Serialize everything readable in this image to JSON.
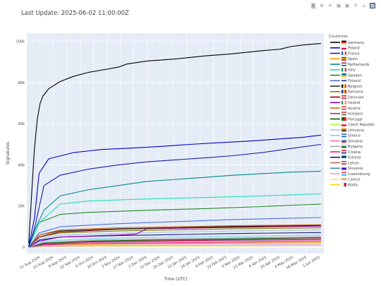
{
  "header": {
    "last_update": "Last Update: 2025-06-02 11:00:00Z"
  },
  "modebar": [
    {
      "name": "camera-icon",
      "glyph": "◙"
    },
    {
      "name": "zoom-icon",
      "glyph": "⊕"
    },
    {
      "name": "pan-icon",
      "glyph": "✛"
    },
    {
      "name": "zoom-in-icon",
      "glyph": "▣"
    },
    {
      "name": "zoom-out-icon",
      "glyph": "▣"
    },
    {
      "name": "autoscale-icon",
      "glyph": "✕"
    },
    {
      "name": "home-icon",
      "glyph": "⌂"
    },
    {
      "name": "plotly-logo-icon",
      "glyph": "▦"
    }
  ],
  "chart_data": {
    "type": "line",
    "title": "",
    "xlabel": "Time (UTC)",
    "ylabel": "Signatures",
    "xrange": [
      "2024-07-28",
      "2025-06-05"
    ],
    "ylim": [
      -3000,
      104000
    ],
    "y_ticks": [
      0,
      20000,
      40000,
      60000,
      80000,
      100000
    ],
    "y_tick_labels": [
      "0",
      "20k",
      "40k",
      "60k",
      "80k",
      "100k"
    ],
    "x_ticks": [
      "2024-08-11",
      "2024-08-25",
      "2024-09-08",
      "2024-09-22",
      "2024-10-06",
      "2024-10-20",
      "2024-11-03",
      "2024-11-17",
      "2024-12-01",
      "2024-12-15",
      "2024-12-29",
      "2025-01-12",
      "2025-01-26",
      "2025-02-09",
      "2025-02-23",
      "2025-03-09",
      "2025-03-23",
      "2025-04-06",
      "2025-04-20",
      "2025-05-04",
      "2025-05-18",
      "2025-06-01"
    ],
    "x_tick_labels": [
      "11 Aug 2024",
      "25 Aug 2024",
      "8 Sep 2024",
      "22 Sep 2024",
      "6 Oct 2024",
      "20 Oct 2024",
      "3 Nov 2024",
      "17 Nov 2024",
      "1 Dec 2024",
      "15 Dec 2024",
      "29 Dec 2024",
      "12 Jan 2025",
      "26 Jan 2025",
      "9 Feb 2025",
      "23 Feb 2025",
      "9 Mar 2025",
      "23 Mar 2025",
      "6 Apr 2025",
      "20 Apr 2025",
      "4 May 2025",
      "18 May 2025",
      "1 Jun 2025"
    ],
    "grid": true,
    "legend_title": "Countries",
    "legend_position": "right",
    "plot_bg": "#e5ecf6",
    "series": [
      {
        "name": "Germany",
        "color": "#000000",
        "flag": [
          "#000000",
          "#dd0000",
          "#ffce00"
        ],
        "flag_dir": "h",
        "x": [
          "2024-07-30",
          "2024-08-02",
          "2024-08-05",
          "2024-08-08",
          "2024-08-11",
          "2024-08-14",
          "2024-08-20",
          "2024-09-01",
          "2024-09-15",
          "2024-10-01",
          "2024-10-20",
          "2024-11-01",
          "2024-11-10",
          "2024-12-01",
          "2025-01-01",
          "2025-02-01",
          "2025-03-01",
          "2025-04-01",
          "2025-04-20",
          "2025-05-01",
          "2025-05-15",
          "2025-06-02"
        ],
        "values": [
          2000,
          25000,
          48000,
          62000,
          70000,
          73500,
          77000,
          80500,
          83000,
          85000,
          86500,
          87500,
          89000,
          90500,
          91500,
          93000,
          94000,
          95500,
          96200,
          97500,
          98300,
          99000
        ]
      },
      {
        "name": "Poland",
        "color": "#0000cc",
        "flag": [
          "#ffffff",
          "#dc143c"
        ],
        "flag_dir": "h",
        "x": [
          "2024-07-30",
          "2024-08-05",
          "2024-08-10",
          "2024-08-20",
          "2024-09-15",
          "2024-10-15",
          "2024-11-15",
          "2024-12-15",
          "2025-01-15",
          "2025-02-15",
          "2025-03-15",
          "2025-04-15",
          "2025-05-15",
          "2025-06-02"
        ],
        "values": [
          500,
          14000,
          36000,
          43000,
          46000,
          47500,
          48200,
          49000,
          50000,
          50800,
          51500,
          52500,
          53500,
          54500
        ]
      },
      {
        "name": "France",
        "color": "#1a1ab0",
        "flag": [
          "#0055a4",
          "#ffffff",
          "#ef4135"
        ],
        "flag_dir": "v",
        "x": [
          "2024-07-30",
          "2024-08-05",
          "2024-08-15",
          "2024-09-01",
          "2024-10-01",
          "2024-11-01",
          "2024-12-01",
          "2025-01-01",
          "2025-02-01",
          "2025-03-01",
          "2025-04-01",
          "2025-05-01",
          "2025-06-02"
        ],
        "values": [
          500,
          9000,
          30000,
          35000,
          38000,
          40000,
          41500,
          42500,
          43500,
          44500,
          46000,
          48000,
          50000
        ]
      },
      {
        "name": "Spain",
        "color": "#ff9900",
        "flag": [
          "#aa151b",
          "#f1bf00",
          "#aa151b"
        ],
        "flag_dir": "h",
        "x": [
          "2024-07-30",
          "2024-08-15",
          "2024-10-01",
          "2024-12-01",
          "2025-02-01",
          "2025-04-01",
          "2025-06-02"
        ],
        "values": [
          100,
          1000,
          1400,
          1700,
          1900,
          2100,
          2300
        ]
      },
      {
        "name": "Netherlands",
        "color": "#008b8b",
        "flag": [
          "#ae1c28",
          "#ffffff",
          "#21468b"
        ],
        "flag_dir": "h",
        "x": [
          "2024-07-30",
          "2024-08-05",
          "2024-08-15",
          "2024-09-01",
          "2024-10-01",
          "2024-11-01",
          "2024-12-01",
          "2025-01-01",
          "2025-02-01",
          "2025-03-01",
          "2025-04-01",
          "2025-05-01",
          "2025-06-02"
        ],
        "values": [
          300,
          8000,
          18000,
          25000,
          28000,
          30000,
          32000,
          33000,
          34000,
          35000,
          35800,
          36500,
          37000
        ]
      },
      {
        "name": "Italy",
        "color": "#20e0b0",
        "flag": [
          "#009246",
          "#ffffff",
          "#ce2b37"
        ],
        "flag_dir": "v",
        "x": [
          "2024-07-30",
          "2024-08-10",
          "2024-09-01",
          "2024-10-01",
          "2024-12-01",
          "2025-02-01",
          "2025-04-01",
          "2025-06-02"
        ],
        "values": [
          200,
          12000,
          21000,
          22500,
          23500,
          24200,
          25000,
          26000
        ]
      },
      {
        "name": "Sweden",
        "color": "#228b22",
        "flag": [
          "#006aa7",
          "#fecc00"
        ],
        "flag_dir": "h",
        "x": [
          "2024-07-30",
          "2024-08-10",
          "2024-09-01",
          "2024-10-01",
          "2024-12-01",
          "2025-02-01",
          "2025-04-01",
          "2025-06-02"
        ],
        "values": [
          200,
          12000,
          16000,
          17000,
          18000,
          18800,
          19800,
          21000
        ]
      },
      {
        "name": "Finland",
        "color": "#4b6fd8",
        "flag": [
          "#ffffff",
          "#003580",
          "#ffffff"
        ],
        "flag_dir": "h",
        "x": [
          "2024-07-30",
          "2024-08-10",
          "2024-09-01",
          "2024-11-01",
          "2025-01-01",
          "2025-03-01",
          "2025-06-02"
        ],
        "values": [
          100,
          7000,
          10000,
          11500,
          12500,
          13500,
          14500
        ]
      },
      {
        "name": "Belgium",
        "color": "#333333",
        "flag": [
          "#000000",
          "#fdda24",
          "#ef3340"
        ],
        "flag_dir": "v",
        "x": [
          "2024-07-30",
          "2024-08-10",
          "2024-09-01",
          "2024-11-01",
          "2025-01-01",
          "2025-03-01",
          "2025-06-02"
        ],
        "values": [
          100,
          6000,
          8000,
          9000,
          9600,
          10200,
          10800
        ]
      },
      {
        "name": "Romania",
        "color": "#808000",
        "flag": [
          "#002b7f",
          "#fcd116",
          "#ce1126"
        ],
        "flag_dir": "v",
        "x": [
          "2024-07-30",
          "2024-08-10",
          "2024-09-01",
          "2024-11-01",
          "2025-01-01",
          "2025-03-01",
          "2025-06-02"
        ],
        "values": [
          100,
          5000,
          7000,
          8000,
          8500,
          9000,
          9500
        ]
      },
      {
        "name": "Denmark",
        "color": "#8b0000",
        "flag": [
          "#c60c30",
          "#ffffff",
          "#c60c30"
        ],
        "flag_dir": "h",
        "x": [
          "2024-07-30",
          "2024-08-10",
          "2024-09-01",
          "2024-11-01",
          "2025-01-01",
          "2025-03-01",
          "2025-06-02"
        ],
        "values": [
          100,
          5000,
          7500,
          8800,
          9400,
          9900,
          10500
        ]
      },
      {
        "name": "Ireland",
        "color": "#9400d3",
        "flag": [
          "#169b62",
          "#ffffff",
          "#ff883e"
        ],
        "flag_dir": "v",
        "x": [
          "2024-07-30",
          "2024-08-10",
          "2024-09-01",
          "2024-11-01",
          "2024-11-20",
          "2024-12-01",
          "2025-02-01",
          "2025-04-01",
          "2025-06-02"
        ],
        "values": [
          100,
          3000,
          5000,
          6000,
          6500,
          9000,
          9500,
          9900,
          10300
        ]
      },
      {
        "name": "Austria",
        "color": "#d2691e",
        "flag": [
          "#ed2939",
          "#ffffff",
          "#ed2939"
        ],
        "flag_dir": "h",
        "x": [
          "2024-07-30",
          "2024-08-10",
          "2024-09-01",
          "2024-11-01",
          "2025-01-01",
          "2025-03-01",
          "2025-06-02"
        ],
        "values": [
          100,
          6000,
          8500,
          9500,
          10000,
          10500,
          11000
        ]
      },
      {
        "name": "Hungary",
        "color": "#b03060",
        "flag": [
          "#ce2939",
          "#ffffff",
          "#477050"
        ],
        "flag_dir": "h",
        "x": [
          "2024-07-30",
          "2024-08-15",
          "2024-10-01",
          "2024-12-01",
          "2025-02-01",
          "2025-04-01",
          "2025-06-02"
        ],
        "values": [
          100,
          1500,
          2500,
          3000,
          3400,
          3800,
          4200
        ]
      },
      {
        "name": "Portugal",
        "color": "#006400",
        "flag": [
          "#006600",
          "#ff0000"
        ],
        "flag_dir": "v",
        "x": [
          "2024-07-30",
          "2024-08-15",
          "2024-10-01",
          "2024-12-01",
          "2025-02-01",
          "2025-04-01",
          "2025-06-02"
        ],
        "values": [
          100,
          2000,
          3000,
          3500,
          3900,
          4300,
          4700
        ]
      },
      {
        "name": "Czech Republic",
        "color": "#adff2f",
        "flag": [
          "#ffffff",
          "#d7141a"
        ],
        "flag_dir": "h",
        "x": [
          "2024-07-30",
          "2024-08-15",
          "2024-10-01",
          "2024-12-01",
          "2025-02-01",
          "2025-04-01",
          "2025-06-02"
        ],
        "values": [
          100,
          1000,
          1600,
          2000,
          2300,
          2600,
          2900
        ]
      },
      {
        "name": "Lithuania",
        "color": "#b0c4de",
        "flag": [
          "#fdb913",
          "#006a44",
          "#c1272d"
        ],
        "flag_dir": "h",
        "x": [
          "2024-07-30",
          "2024-08-10",
          "2024-09-01",
          "2024-11-01",
          "2025-01-01",
          "2025-03-01",
          "2025-06-02"
        ],
        "values": [
          100,
          4000,
          6000,
          6800,
          7400,
          7900,
          8400
        ]
      },
      {
        "name": "Greece",
        "color": "#87cefa",
        "flag": [
          "#0d5eaf",
          "#ffffff",
          "#0d5eaf"
        ],
        "flag_dir": "h",
        "x": [
          "2024-07-30",
          "2024-08-15",
          "2024-10-01",
          "2024-12-01",
          "2025-02-01",
          "2025-04-01",
          "2025-06-02"
        ],
        "values": [
          100,
          3000,
          4200,
          4800,
          5200,
          5600,
          6000
        ]
      },
      {
        "name": "Slovakia",
        "color": "#ff69b4",
        "flag": [
          "#ffffff",
          "#0b4ea2",
          "#ee1c25"
        ],
        "flag_dir": "h",
        "x": [
          "2024-07-30",
          "2024-08-15",
          "2024-10-01",
          "2024-12-01",
          "2025-02-01",
          "2025-04-01",
          "2025-06-02"
        ],
        "values": [
          100,
          1500,
          2300,
          2700,
          3000,
          3300,
          3600
        ]
      },
      {
        "name": "Bulgaria",
        "color": "#a9a9a9",
        "flag": [
          "#ffffff",
          "#00966e",
          "#d62612"
        ],
        "flag_dir": "h",
        "x": [
          "2024-07-30",
          "2024-08-15",
          "2024-10-01",
          "2024-12-01",
          "2025-02-01",
          "2025-04-01",
          "2025-06-02"
        ],
        "values": [
          100,
          2500,
          3500,
          4000,
          4400,
          4800,
          5200
        ]
      },
      {
        "name": "Croatia",
        "color": "#ff1493",
        "flag": [
          "#ff0000",
          "#ffffff",
          "#171796"
        ],
        "flag_dir": "h",
        "x": [
          "2024-07-30",
          "2024-08-15",
          "2024-10-01",
          "2024-12-01",
          "2025-02-01",
          "2025-04-01",
          "2025-06-02"
        ],
        "values": [
          100,
          1200,
          1800,
          2100,
          2400,
          2700,
          3000
        ]
      },
      {
        "name": "Estonia",
        "color": "#191970",
        "flag": [
          "#0072ce",
          "#000000",
          "#ffffff"
        ],
        "flag_dir": "h",
        "x": [
          "2024-07-30",
          "2024-08-10",
          "2024-09-01",
          "2024-11-01",
          "2025-01-01",
          "2025-03-01",
          "2025-06-02"
        ],
        "values": [
          100,
          3500,
          5000,
          5700,
          6200,
          6700,
          7200
        ]
      },
      {
        "name": "Latvia",
        "color": "#cd5c5c",
        "flag": [
          "#9e3039",
          "#ffffff",
          "#9e3039"
        ],
        "flag_dir": "h",
        "x": [
          "2024-07-30",
          "2024-08-15",
          "2024-10-01",
          "2024-12-01",
          "2025-02-01",
          "2025-04-01",
          "2025-06-02"
        ],
        "values": [
          100,
          2000,
          2800,
          3200,
          3500,
          3800,
          4100
        ]
      },
      {
        "name": "Slovenia",
        "color": "#4682b4",
        "flag": [
          "#ffffff",
          "#0000ff",
          "#ff0000"
        ],
        "flag_dir": "h",
        "x": [
          "2024-07-30",
          "2024-08-15",
          "2024-10-01",
          "2024-12-01",
          "2025-02-01",
          "2025-04-01",
          "2025-06-02"
        ],
        "values": [
          100,
          1800,
          2600,
          3000,
          3300,
          3600,
          3900
        ]
      },
      {
        "name": "Luxembourg",
        "color": "#dda0dd",
        "flag": [
          "#ed2939",
          "#ffffff",
          "#00a1de"
        ],
        "flag_dir": "h",
        "x": [
          "2024-07-30",
          "2024-08-15",
          "2024-10-01",
          "2024-12-01",
          "2025-02-01",
          "2025-04-01",
          "2025-06-02"
        ],
        "values": [
          50,
          500,
          800,
          950,
          1100,
          1250,
          1400
        ]
      },
      {
        "name": "Cyprus",
        "color": "#f5deb3",
        "flag": [
          "#ffffff",
          "#d57800",
          "#ffffff"
        ],
        "flag_dir": "h",
        "x": [
          "2024-07-30",
          "2024-08-15",
          "2024-10-01",
          "2024-12-01",
          "2025-02-01",
          "2025-04-01",
          "2025-06-02"
        ],
        "values": [
          50,
          400,
          650,
          800,
          900,
          1000,
          1100
        ]
      },
      {
        "name": "Malta",
        "color": "#ffd700",
        "flag": [
          "#ffffff",
          "#cf142b"
        ],
        "flag_dir": "v",
        "x": [
          "2024-07-30",
          "2024-08-15",
          "2024-10-01",
          "2024-12-01",
          "2025-02-01",
          "2025-04-01",
          "2025-06-02"
        ],
        "values": [
          50,
          300,
          500,
          600,
          700,
          800,
          900
        ]
      }
    ]
  }
}
